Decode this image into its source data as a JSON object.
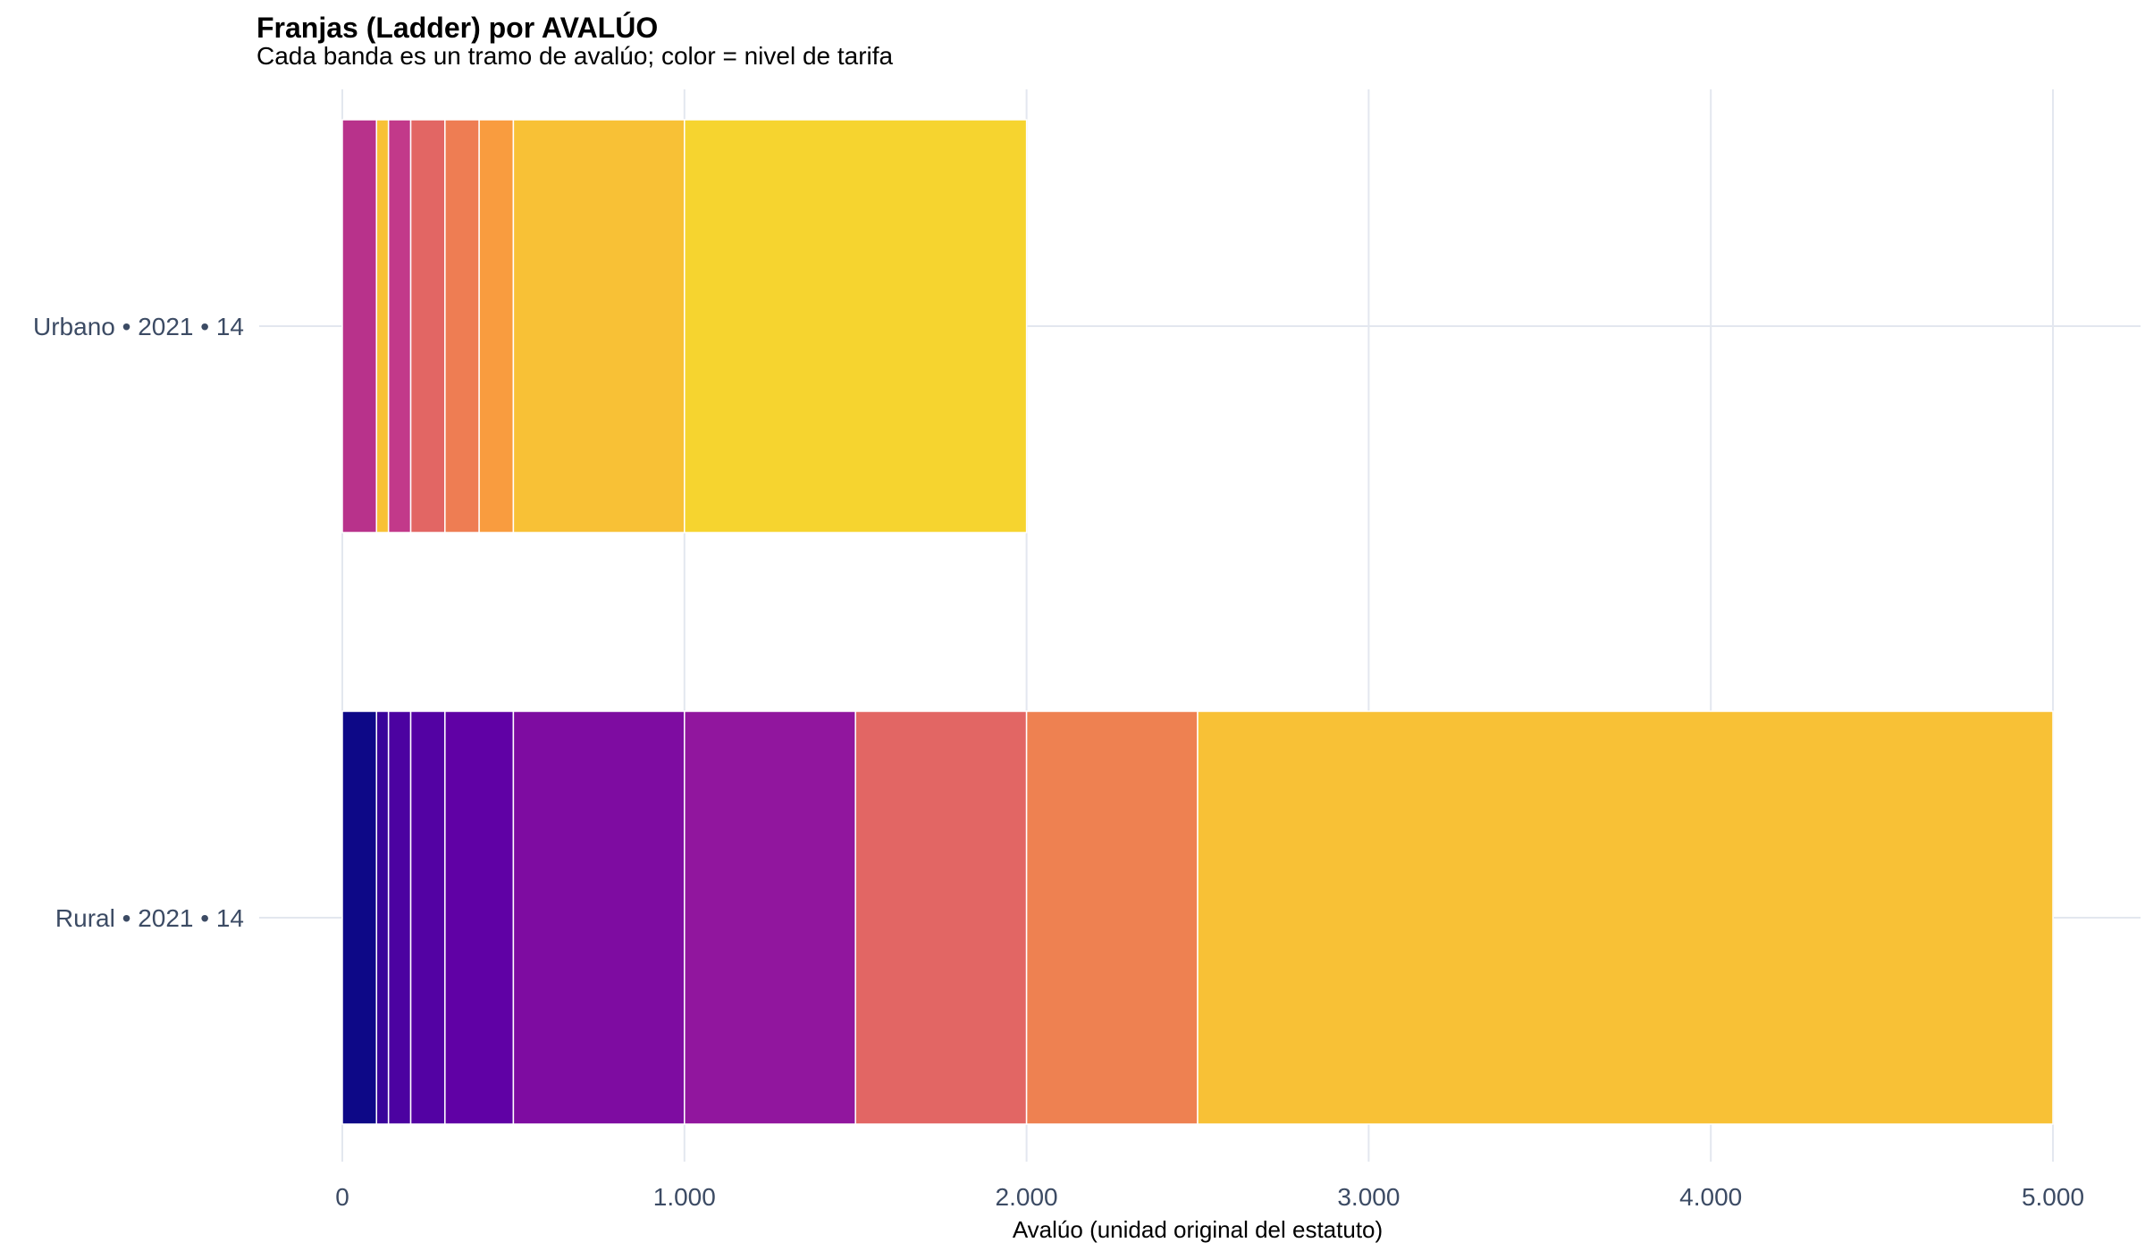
{
  "chart_data": {
    "type": "bar",
    "orientation": "horizontal-stacked",
    "title": "Franjas (Ladder) por AVALÚO",
    "subtitle": "Cada banda es un tramo de avalúo; color = nivel de tarifa",
    "xlabel": "Avalúo (unidad original del estatuto)",
    "ylabel": "",
    "xlim": [
      0,
      5000
    ],
    "x_ticks": [
      0,
      1000,
      2000,
      3000,
      4000,
      5000
    ],
    "x_tick_labels": [
      "0",
      "1.000",
      "2.000",
      "3.000",
      "4.000",
      "5.000"
    ],
    "grid": true,
    "legend": "none",
    "categories": [
      "Urbano • 2021 • 14",
      "Rural • 2021 • 14"
    ],
    "series": [
      {
        "category": "Urbano • 2021 • 14",
        "bands": [
          {
            "from": 0,
            "to": 100,
            "color": "#b8328b"
          },
          {
            "from": 100,
            "to": 135,
            "color": "#f8c136"
          },
          {
            "from": 135,
            "to": 200,
            "color": "#c2398a"
          },
          {
            "from": 200,
            "to": 300,
            "color": "#e26664"
          },
          {
            "from": 300,
            "to": 400,
            "color": "#ee7d53"
          },
          {
            "from": 400,
            "to": 500,
            "color": "#f99c3f"
          },
          {
            "from": 500,
            "to": 1000,
            "color": "#f8c136"
          },
          {
            "from": 1000,
            "to": 2000,
            "color": "#f6d42f"
          }
        ]
      },
      {
        "category": "Rural • 2021 • 14",
        "bands": [
          {
            "from": 0,
            "to": 100,
            "color": "#0d0887"
          },
          {
            "from": 100,
            "to": 135,
            "color": "#3a049a"
          },
          {
            "from": 135,
            "to": 200,
            "color": "#4c02a1"
          },
          {
            "from": 200,
            "to": 300,
            "color": "#5302a3"
          },
          {
            "from": 300,
            "to": 500,
            "color": "#6001a5"
          },
          {
            "from": 500,
            "to": 1000,
            "color": "#7e0ca1"
          },
          {
            "from": 1000,
            "to": 1500,
            "color": "#91169e"
          },
          {
            "from": 1500,
            "to": 2000,
            "color": "#e26664"
          },
          {
            "from": 2000,
            "to": 2500,
            "color": "#ee8151"
          },
          {
            "from": 2500,
            "to": 5000,
            "color": "#f8c136"
          }
        ]
      }
    ]
  }
}
